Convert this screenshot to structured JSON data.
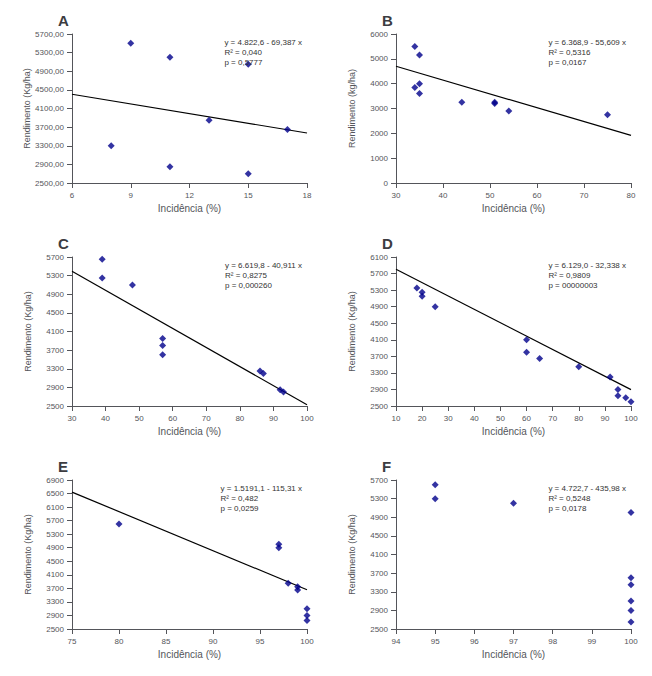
{
  "chart_data": [
    {
      "type": "scatter",
      "title": "A",
      "xlabel": "Incidência (%)",
      "ylabel": "Rendimento (Kg/ha)",
      "annotations": [
        "y = 4.822,6 - 69,387 x\nR² = 0,040\np = 0,5777"
      ],
      "xlim": [
        6,
        18
      ],
      "xticks": [
        6,
        9,
        12,
        15,
        18
      ],
      "ylim": [
        2500,
        5700
      ],
      "yticks": [
        {
          "value": 2500,
          "label": "2500,00"
        },
        {
          "value": 2900,
          "label": "2900,00"
        },
        {
          "value": 3300,
          "label": "3300,00"
        },
        {
          "value": 3700,
          "label": "3700,00"
        },
        {
          "value": 4100,
          "label": "4100,00"
        },
        {
          "value": 4500,
          "label": "4500,00"
        },
        {
          "value": 4900,
          "label": "4900,00"
        },
        {
          "value": 5300,
          "label": "5300,00"
        },
        {
          "value": 5700,
          "label": "5700,00"
        }
      ],
      "grid": false,
      "series": [
        {
          "type": "scatter",
          "color": "#00008B",
          "marker": "diamond",
          "x": [
            8,
            9,
            11,
            11,
            13,
            15,
            15,
            17
          ],
          "values": [
            3300,
            5500,
            5200,
            2850,
            3850,
            5050,
            2700,
            3650
          ]
        },
        {
          "type": "line",
          "color": "#000000",
          "x": [
            6,
            18
          ],
          "values": [
            4406.278,
            3573.634
          ]
        }
      ]
    },
    {
      "type": "scatter",
      "title": "B",
      "xlabel": "Incidência (%)",
      "ylabel": "Rendimento (kg/ha)",
      "annotations": [
        "y = 6.368,9 - 55,609 x\nR² = 0,5316\np = 0,0167"
      ],
      "xlim": [
        30,
        80
      ],
      "xticks": [
        30,
        40,
        50,
        60,
        70,
        80
      ],
      "ylim": [
        0,
        6000
      ],
      "yticks": [
        0,
        1000,
        2000,
        3000,
        4000,
        5000,
        6000
      ],
      "grid": false,
      "series": [
        {
          "type": "scatter",
          "color": "#00008B",
          "marker": "diamond",
          "x": [
            34,
            34,
            35,
            35,
            35,
            44,
            51,
            51,
            54,
            75
          ],
          "values": [
            5500,
            3850,
            5150,
            3600,
            4000,
            3250,
            3250,
            3200,
            2900,
            2750
          ]
        },
        {
          "type": "line",
          "color": "#000000",
          "x": [
            30,
            80
          ],
          "values": [
            4700.63,
            1920.18
          ]
        }
      ]
    },
    {
      "type": "scatter",
      "title": "C",
      "xlabel": "Incidência (%)",
      "ylabel": "Rendimento (Kg/ha)",
      "annotations": [
        "y = 6.619,8 - 40,911 x\nR² = 0,8275\np = 0,000260"
      ],
      "xlim": [
        30,
        100
      ],
      "xticks": [
        30,
        40,
        50,
        60,
        70,
        80,
        90,
        100
      ],
      "ylim": [
        2500,
        5700
      ],
      "yticks": [
        2500,
        2900,
        3300,
        3700,
        4100,
        4500,
        4900,
        5300,
        5700
      ],
      "grid": false,
      "series": [
        {
          "type": "scatter",
          "color": "#00008B",
          "marker": "diamond",
          "x": [
            39,
            39,
            48,
            57,
            57,
            57,
            86,
            87,
            92,
            93
          ],
          "values": [
            5650,
            5250,
            5100,
            3950,
            3800,
            3600,
            3250,
            3200,
            2850,
            2800
          ]
        },
        {
          "type": "line",
          "color": "#000000",
          "x": [
            30,
            100
          ],
          "values": [
            5392.47,
            2528.7
          ]
        }
      ]
    },
    {
      "type": "scatter",
      "title": "D",
      "xlabel": "Incidência (%)",
      "ylabel": "Rendimento (Kg/ha)",
      "annotations": [
        "y = 6.129,0 - 32,338 x\nR² = 0,9809\np = 00000003"
      ],
      "xlim": [
        10,
        100
      ],
      "xticks": [
        10,
        20,
        30,
        40,
        50,
        60,
        70,
        80,
        90,
        100
      ],
      "ylim": [
        2500,
        6100
      ],
      "yticks": [
        2500,
        2900,
        3300,
        3700,
        4100,
        4500,
        4900,
        5300,
        5700,
        6100
      ],
      "grid": false,
      "series": [
        {
          "type": "scatter",
          "color": "#00008B",
          "marker": "diamond",
          "x": [
            18,
            20,
            20,
            25,
            60,
            60,
            65,
            80,
            92,
            95,
            95,
            98,
            100
          ],
          "values": [
            5350,
            5250,
            5150,
            4900,
            4100,
            3800,
            3650,
            3450,
            3200,
            2900,
            2750,
            2700,
            2600
          ]
        },
        {
          "type": "line",
          "color": "#000000",
          "x": [
            10,
            100
          ],
          "values": [
            5805.62,
            2895.2
          ]
        }
      ]
    },
    {
      "type": "scatter",
      "title": "E",
      "xlabel": "Incidência (%)",
      "ylabel": "Rendimento (Kg/ha)",
      "annotations": [
        "y = 1.5191,1 - 115,31 x\nR² = 0,482\np = 0,0259"
      ],
      "xlim": [
        75,
        100
      ],
      "xticks": [
        75,
        80,
        85,
        90,
        95,
        100
      ],
      "ylim": [
        2500,
        6900
      ],
      "yticks": [
        2500,
        2900,
        3300,
        3700,
        4100,
        4500,
        4900,
        5300,
        5700,
        6100,
        6500,
        6900
      ],
      "grid": false,
      "series": [
        {
          "type": "scatter",
          "color": "#00008B",
          "marker": "diamond",
          "x": [
            80,
            97,
            97,
            98,
            99,
            99,
            100,
            100,
            100
          ],
          "values": [
            5600,
            5000,
            4900,
            3850,
            3750,
            3650,
            3100,
            2900,
            2750
          ]
        },
        {
          "type": "line",
          "color": "#000000",
          "x": [
            75,
            100
          ],
          "values": [
            6542.85,
            3660.1
          ]
        }
      ]
    },
    {
      "type": "scatter",
      "title": "F",
      "xlabel": "Incidência (%)",
      "ylabel": "Rendimento (Kg/ha)",
      "annotations": [
        "y = 4.722,7 - 435,98 x\nR² = 0,5248\np = 0,0178"
      ],
      "xlim": [
        94,
        100
      ],
      "xticks": [
        94,
        95,
        96,
        97,
        98,
        99,
        100
      ],
      "ylim": [
        2500,
        5700
      ],
      "yticks": [
        2500,
        2900,
        3300,
        3700,
        4100,
        4500,
        4900,
        5300,
        5700
      ],
      "grid": false,
      "series": [
        {
          "type": "scatter",
          "color": "#00008B",
          "marker": "diamond",
          "x": [
            95,
            95,
            97,
            100,
            100,
            100,
            100,
            100,
            100
          ],
          "values": [
            5600,
            5300,
            5200,
            5000,
            3600,
            3450,
            3100,
            2900,
            2650
          ]
        }
      ]
    }
  ]
}
